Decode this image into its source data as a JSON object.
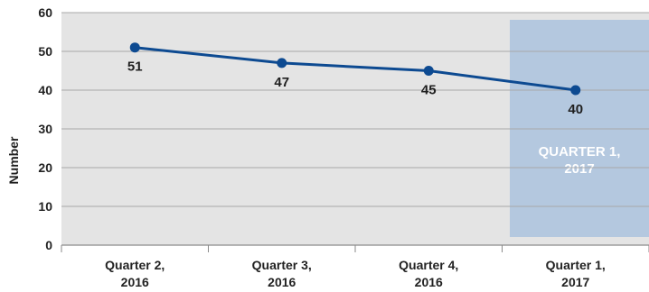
{
  "chart_data": {
    "type": "line",
    "categories": [
      "Quarter 2, 2016",
      "Quarter 3, 2016",
      "Quarter 4, 2016",
      "Quarter 1, 2017"
    ],
    "category_lines": [
      [
        "Quarter 2,",
        "2016"
      ],
      [
        "Quarter 3,",
        "2016"
      ],
      [
        "Quarter 4,",
        "2016"
      ],
      [
        "Quarter 1,",
        "2017"
      ]
    ],
    "values": [
      51,
      47,
      45,
      40
    ],
    "value_labels": [
      "51",
      "47",
      "45",
      "40"
    ],
    "title": "",
    "xlabel": "",
    "ylabel": "Number",
    "ylim": [
      0,
      60
    ],
    "yticks": [
      0,
      10,
      20,
      30,
      40,
      50,
      60
    ],
    "ytick_labels": [
      "0",
      "10",
      "20",
      "30",
      "40",
      "50",
      "60"
    ],
    "grid": true,
    "highlight": {
      "category_index": 3,
      "lines": [
        "QUARTER 1,",
        "2017"
      ],
      "color": "#b4c8df",
      "text_color": "#ffffff"
    },
    "colors": {
      "line": "#0d4a91",
      "point": "#0d4a91",
      "plot_bg": "#e4e4e4",
      "grid": "#a9a9a9",
      "text": "#222222"
    }
  }
}
